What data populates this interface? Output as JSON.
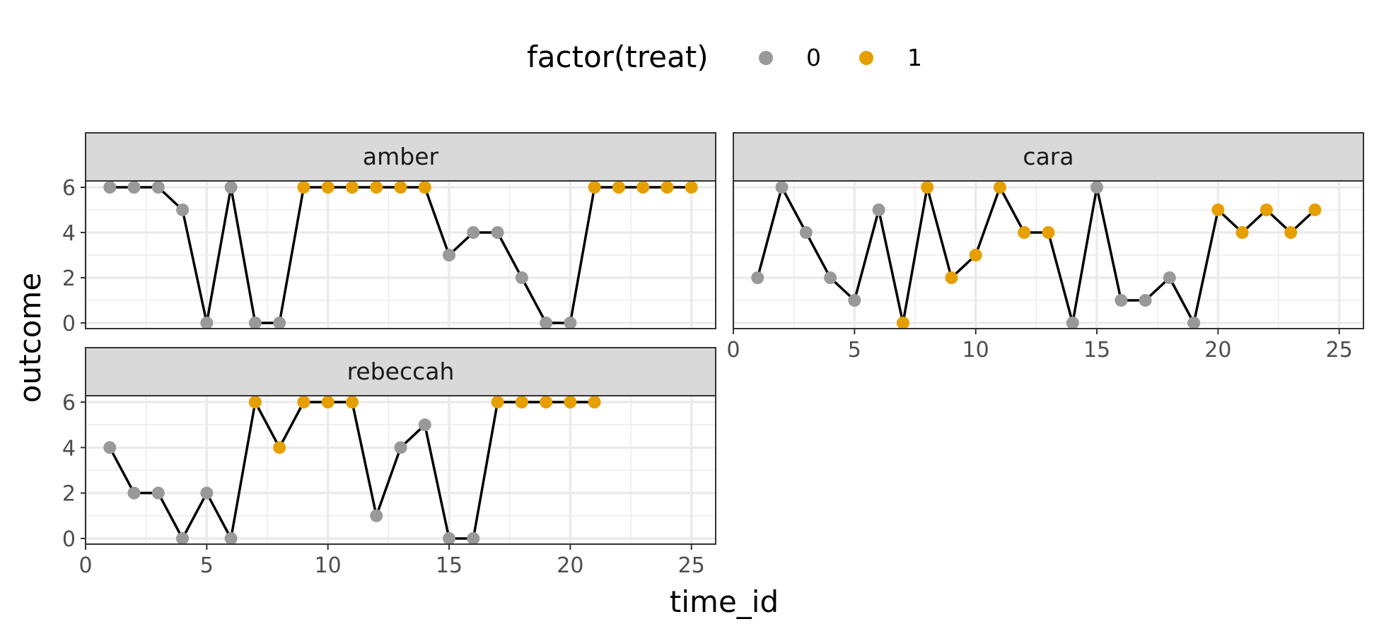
{
  "chart_data": {
    "type": "line",
    "facet_layout": "wrap",
    "grid": true,
    "legend_position": "top",
    "xlabel": "time_id",
    "ylabel": "outcome",
    "xlim": [
      0,
      26
    ],
    "ylim": [
      0,
      6
    ],
    "x_ticks": [
      0,
      5,
      10,
      15,
      20,
      25
    ],
    "y_ticks": [
      0,
      2,
      4,
      6
    ],
    "legend": {
      "title": "factor(treat)",
      "entries": [
        {
          "label": "0",
          "color": "#999999"
        },
        {
          "label": "1",
          "color": "#E69F00"
        }
      ]
    },
    "line_color": "#000000",
    "facets": [
      {
        "name": "amber",
        "x": [
          1,
          2,
          3,
          4,
          5,
          6,
          7,
          8,
          9,
          10,
          11,
          12,
          13,
          14,
          15,
          16,
          17,
          18,
          19,
          20,
          21,
          22,
          23,
          24,
          25
        ],
        "y": [
          6,
          6,
          6,
          5,
          0,
          6,
          0,
          0,
          6,
          6,
          6,
          6,
          6,
          6,
          3,
          4,
          4,
          2,
          0,
          0,
          6,
          6,
          6,
          6,
          6
        ],
        "treat": [
          0,
          0,
          0,
          0,
          0,
          0,
          0,
          0,
          1,
          1,
          1,
          1,
          1,
          1,
          0,
          0,
          0,
          0,
          0,
          0,
          1,
          1,
          1,
          1,
          1
        ]
      },
      {
        "name": "cara",
        "x": [
          1,
          2,
          3,
          4,
          5,
          6,
          7,
          8,
          9,
          10,
          11,
          12,
          13,
          14,
          15,
          16,
          17,
          18,
          19,
          20,
          21,
          22,
          23,
          24
        ],
        "y": [
          2,
          6,
          4,
          2,
          1,
          5,
          0,
          6,
          2,
          3,
          6,
          4,
          4,
          0,
          6,
          1,
          1,
          2,
          0,
          5,
          4,
          5,
          4,
          5
        ],
        "treat": [
          0,
          0,
          0,
          0,
          0,
          0,
          1,
          1,
          1,
          1,
          1,
          1,
          1,
          0,
          0,
          0,
          0,
          0,
          0,
          1,
          1,
          1,
          1,
          1
        ]
      },
      {
        "name": "rebeccah",
        "x": [
          1,
          2,
          3,
          4,
          5,
          6,
          7,
          8,
          9,
          10,
          11,
          12,
          13,
          14,
          15,
          16,
          17,
          18,
          19,
          20,
          21
        ],
        "y": [
          4,
          2,
          2,
          0,
          2,
          0,
          6,
          4,
          6,
          6,
          6,
          1,
          4,
          5,
          0,
          0,
          6,
          6,
          6,
          6,
          6
        ],
        "treat": [
          0,
          0,
          0,
          0,
          0,
          0,
          1,
          1,
          1,
          1,
          1,
          0,
          0,
          0,
          0,
          0,
          1,
          1,
          1,
          1,
          1
        ]
      }
    ]
  }
}
